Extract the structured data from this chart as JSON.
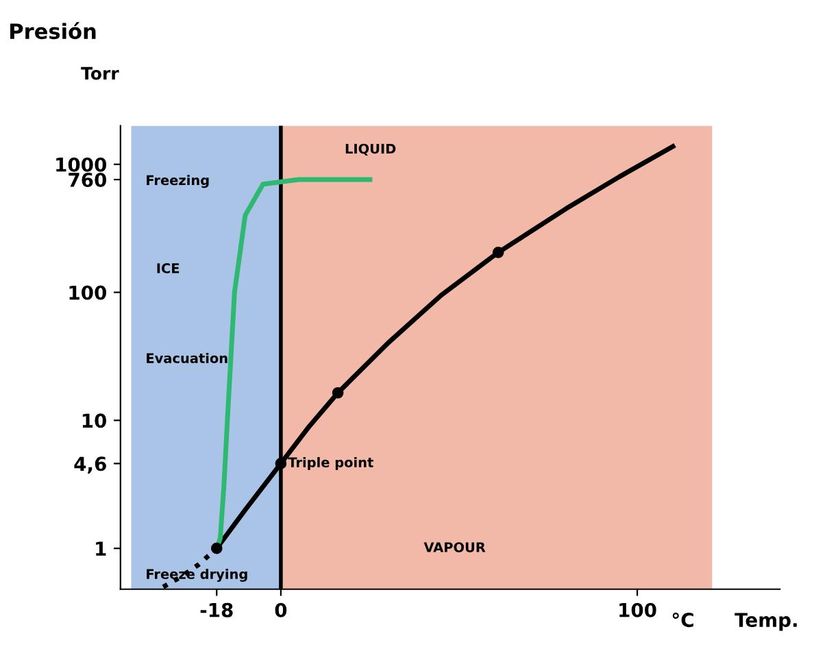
{
  "chart_data": {
    "type": "line",
    "xlabel": "Temp.",
    "log": "y",
    "xlim": [
      -45,
      140
    ],
    "ylim": [
      0.48,
      2000
    ],
    "xticks": [
      {
        "value": -18,
        "label": "-18"
      },
      0,
      100
    ],
    "yticks": [
      1,
      {
        "value": 4.6,
        "label": "4,6"
      },
      10,
      100,
      760,
      1000
    ],
    "grid": false,
    "legend": false,
    "series": [
      {
        "color": "#000000",
        "line_style": "solid",
        "x": [
          -18,
          -10,
          0,
          8,
          16,
          30,
          45,
          61,
          80,
          95,
          110
        ],
        "values": [
          1,
          2,
          4.6,
          9,
          16.4,
          40,
          95,
          205,
          450,
          800,
          1380
        ]
      },
      {
        "color": "#000000",
        "line_style": "dotted",
        "x": [
          -33,
          -28,
          -23,
          -18
        ],
        "values": [
          0.5,
          0.6,
          0.75,
          1
        ]
      },
      {
        "type": "scatter",
        "color": "#000000",
        "marker": "circle",
        "x": [
          -18,
          0,
          16,
          61
        ],
        "values": [
          1,
          4.6,
          16.4,
          205
        ]
      },
      {
        "color": "#2eb872",
        "line_style": "solid",
        "x": [
          25,
          5,
          -5,
          -10,
          -13,
          -15,
          -16,
          -17,
          -18
        ],
        "values": [
          760,
          760,
          700,
          400,
          100,
          10,
          3,
          1.2,
          1
        ]
      }
    ],
    "ref_lines": [
      {
        "axis": "x",
        "value": 0,
        "color": "#000000"
      }
    ],
    "bands": [
      {
        "axis": "x",
        "from": -42,
        "to": 0,
        "color": "#a9c4e6"
      },
      {
        "axis": "x",
        "from": 0,
        "to": 121,
        "color": "#f2b9a8"
      }
    ],
    "annotations": [
      "Presión",
      "Torr",
      "°C",
      "LIQUID",
      "ICE",
      "Evacuation",
      "Freezing",
      "VAPOUR",
      "Freeze drying",
      {
        "text": "Triple point",
        "x": 0,
        "y": 4.6
      }
    ]
  }
}
